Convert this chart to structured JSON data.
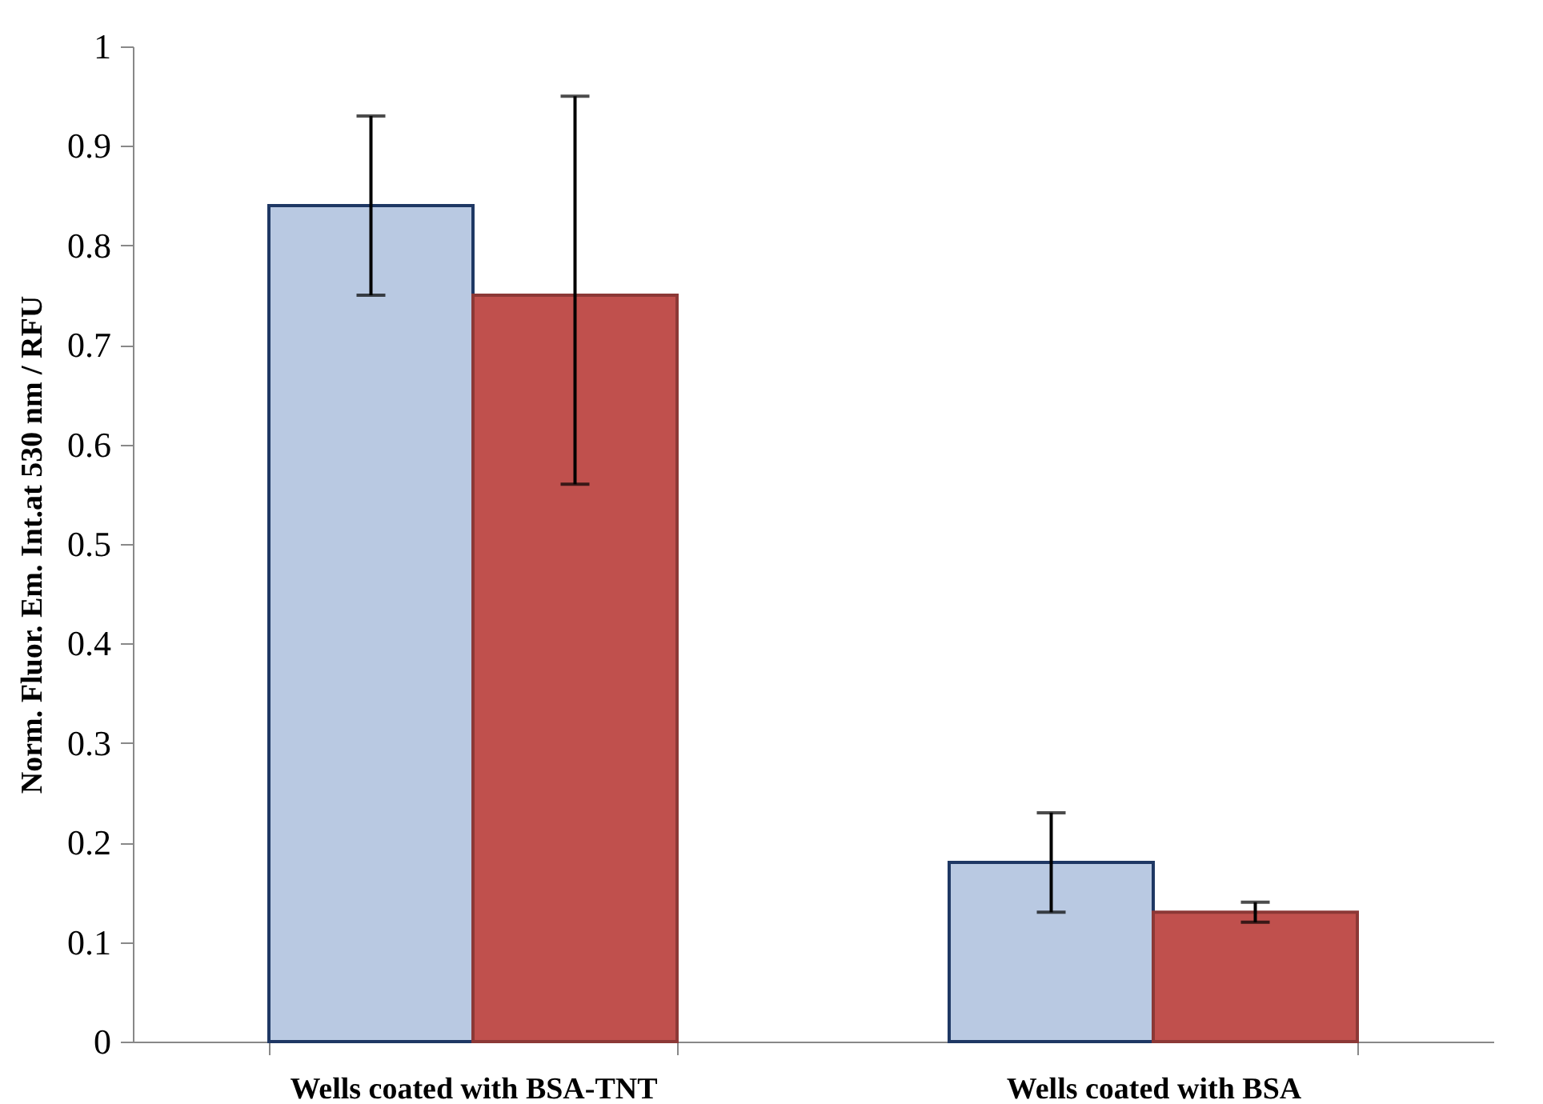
{
  "chart_data": {
    "type": "bar",
    "ylabel": "Norm. Fluor. Em. Int.at 530 nm / RFU",
    "categories": [
      "Wells coated with BSA-TNT",
      "Wells coated with BSA"
    ],
    "series": [
      {
        "color": "#b9c9e2",
        "values": [
          0.84,
          0.18
        ],
        "errors": [
          [
            0.75,
            0.93
          ],
          [
            0.13,
            0.23
          ]
        ]
      },
      {
        "color": "#c0504d",
        "values": [
          0.75,
          0.13
        ],
        "errors": [
          [
            0.56,
            0.95
          ],
          [
            0.12,
            0.14
          ]
        ]
      }
    ],
    "ylim": [
      0,
      1
    ],
    "yticks": [
      0,
      0.1,
      0.2,
      0.3,
      0.4,
      0.5,
      0.6,
      0.7,
      0.8,
      0.9,
      1
    ],
    "grid": false,
    "legend": false
  }
}
